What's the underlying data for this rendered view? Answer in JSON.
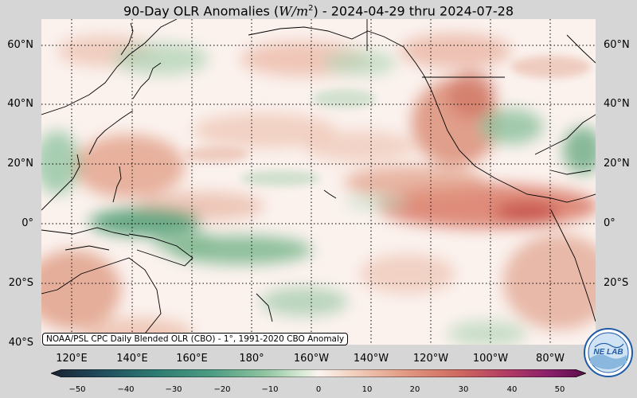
{
  "title": {
    "prefix": "90-Day OLR Anomalies (",
    "unit": "W/m",
    "sup": "2",
    "suffix": ") - 2024-04-29 thru 2024-07-28"
  },
  "lat_labels": [
    "60°N",
    "40°N",
    "20°N",
    "0°",
    "20°S",
    "40°S"
  ],
  "lon_labels": [
    "120°E",
    "140°E",
    "160°E",
    "180°",
    "160°W",
    "140°W",
    "120°W",
    "100°W",
    "80°W"
  ],
  "credit": "NOAA/PSL CPC Daily Blended OLR (CBO) - 1°, 1991-2020 CBO Anomaly",
  "colorbar": {
    "ticks": [
      "−50",
      "−40",
      "−30",
      "−20",
      "−10",
      "0",
      "10",
      "20",
      "30",
      "40",
      "50"
    ],
    "colors": [
      "#1a2233",
      "#1f4a5a",
      "#2e7d73",
      "#4c9c83",
      "#8fc49f",
      "#d8ead6",
      "#fbf3ef",
      "#f1cdbb",
      "#e29a83",
      "#cf6a60",
      "#b33c63",
      "#8a1f6a",
      "#5a0f4a"
    ]
  },
  "logo": {
    "text": "NE LAB",
    "icon": "noaa-psl-logo-icon"
  },
  "anomaly_colors": {
    "positive": "#d98b74",
    "negative": "#5aa27a"
  }
}
